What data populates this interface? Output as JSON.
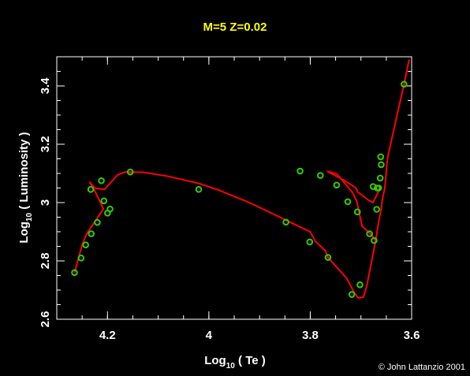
{
  "chart_data": {
    "type": "line",
    "title": "M=5 Z=0.02",
    "xlabel": {
      "prefix": "Log",
      "sub": "10",
      "suffix": " ( Te )"
    },
    "ylabel": {
      "prefix": "Log",
      "sub": "10",
      "suffix": " ( Luminosity )"
    },
    "xlim": [
      4.3,
      3.6
    ],
    "ylim": [
      2.6,
      3.5
    ],
    "x_ticks": [
      {
        "value": 4.2,
        "label": "4.2"
      },
      {
        "value": 4.0,
        "label": "4"
      },
      {
        "value": 3.8,
        "label": "3.8"
      },
      {
        "value": 3.6,
        "label": "3.6"
      }
    ],
    "y_ticks": [
      {
        "value": 2.6,
        "label": "2.6"
      },
      {
        "value": 2.8,
        "label": "2.8"
      },
      {
        "value": 3.0,
        "label": "3"
      },
      {
        "value": 3.2,
        "label": "3.2"
      },
      {
        "value": 3.4,
        "label": "3.4"
      }
    ],
    "x_minor_step": 0.05,
    "y_minor_step": 0.05,
    "line_color": "#ff0000",
    "marker_color": "#33cc00",
    "series": [
      {
        "points": [
          [
            4.265,
            2.76
          ],
          [
            4.257,
            2.81
          ],
          [
            4.25,
            2.855
          ],
          [
            4.241,
            2.893
          ],
          [
            4.226,
            2.932
          ],
          [
            4.214,
            2.963
          ],
          [
            4.208,
            2.978
          ],
          [
            4.215,
            3.005
          ],
          [
            4.223,
            3.033
          ],
          [
            4.235,
            3.07
          ],
          [
            4.225,
            3.05
          ],
          [
            4.206,
            3.045
          ],
          [
            4.18,
            3.095
          ],
          [
            4.165,
            3.105
          ],
          [
            4.13,
            3.104
          ],
          [
            4.08,
            3.09
          ],
          [
            4.02,
            3.066
          ],
          [
            3.981,
            3.043
          ],
          [
            3.92,
            3.0
          ],
          [
            3.86,
            2.95
          ],
          [
            3.84,
            2.933
          ],
          [
            3.8,
            2.9
          ],
          [
            3.79,
            2.867
          ],
          [
            3.77,
            2.835
          ],
          [
            3.765,
            2.812
          ],
          [
            3.75,
            2.783
          ],
          [
            3.728,
            2.74
          ],
          [
            3.712,
            2.687
          ],
          [
            3.705,
            2.673
          ],
          [
            3.695,
            2.676
          ],
          [
            3.688,
            2.718
          ],
          [
            3.68,
            2.79
          ],
          [
            3.671,
            2.87
          ],
          [
            3.665,
            2.935
          ],
          [
            3.66,
            2.977
          ],
          [
            3.658,
            3.008
          ],
          [
            3.653,
            3.05
          ],
          [
            3.651,
            3.085
          ],
          [
            3.649,
            3.13
          ],
          [
            3.647,
            3.157
          ],
          [
            3.632,
            3.275
          ],
          [
            3.615,
            3.406
          ],
          [
            3.605,
            3.49
          ]
        ]
      },
      {
        "points": [
          [
            3.767,
            3.108
          ],
          [
            3.748,
            3.09
          ],
          [
            3.735,
            3.078
          ],
          [
            3.718,
            3.06
          ],
          [
            3.71,
            3.05
          ],
          [
            3.706,
            3.035
          ],
          [
            3.7,
            3.028
          ],
          [
            3.694,
            3.02
          ],
          [
            3.685,
            3.008
          ],
          [
            3.676,
            3.0
          ],
          [
            3.662,
            3.05
          ]
        ]
      },
      {
        "points": [
          [
            3.767,
            3.108
          ],
          [
            3.748,
            3.098
          ],
          [
            3.74,
            3.083
          ],
          [
            3.728,
            3.058
          ],
          [
            3.716,
            3.033
          ],
          [
            3.708,
            3.003
          ],
          [
            3.704,
            2.97
          ],
          [
            3.698,
            2.92
          ],
          [
            3.68,
            2.89
          ],
          [
            3.671,
            2.87
          ]
        ]
      }
    ],
    "markers": [
      [
        4.265,
        2.76
      ],
      [
        4.252,
        2.81
      ],
      [
        4.243,
        2.855
      ],
      [
        4.232,
        2.893
      ],
      [
        4.22,
        2.932
      ],
      [
        4.207,
        3.006
      ],
      [
        4.2,
        2.964
      ],
      [
        4.195,
        2.978
      ],
      [
        4.212,
        3.075
      ],
      [
        4.233,
        3.045
      ],
      [
        4.155,
        3.105
      ],
      [
        4.02,
        3.045
      ],
      [
        3.848,
        2.933
      ],
      [
        3.801,
        2.865
      ],
      [
        3.765,
        2.812
      ],
      [
        3.718,
        2.685
      ],
      [
        3.702,
        2.718
      ],
      [
        3.683,
        2.893
      ],
      [
        3.674,
        2.87
      ],
      [
        3.669,
        2.977
      ],
      [
        3.665,
        3.05
      ],
      [
        3.662,
        3.084
      ],
      [
        3.66,
        3.13
      ],
      [
        3.661,
        3.157
      ],
      [
        3.82,
        3.108
      ],
      [
        3.78,
        3.093
      ],
      [
        3.748,
        3.06
      ],
      [
        3.726,
        3.003
      ],
      [
        3.707,
        2.968
      ],
      [
        3.676,
        3.055
      ],
      [
        3.668,
        3.05
      ],
      [
        3.615,
        3.406
      ]
    ],
    "credit": "© John Lattanzio 2001"
  }
}
